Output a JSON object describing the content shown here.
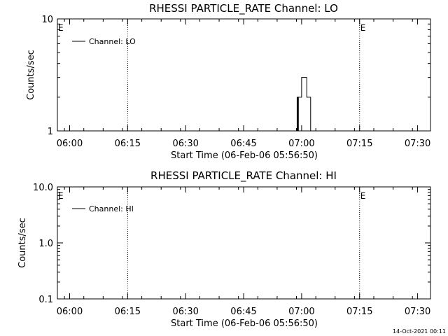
{
  "footer": {
    "timestamp": "14-Oct-2021 00:11"
  },
  "chart_data": [
    {
      "type": "line",
      "title": "RHESSI PARTICLE_RATE Channel: LO",
      "xlabel": "Start Time (06-Feb-06 05:56:50)",
      "ylabel": "Counts/sec",
      "yscale": "log",
      "ylim": [
        1,
        10
      ],
      "xlim_minutes_after_0556_50": [
        0,
        96.5
      ],
      "x_tick_labels": [
        "06:00",
        "06:15",
        "06:30",
        "06:45",
        "07:00",
        "07:15",
        "07:30"
      ],
      "y_tick_labels": [
        "1",
        "10"
      ],
      "legend": "top-left",
      "series": [
        {
          "name": "Channel: LO",
          "x": [
            "06:58:40",
            "06:58:50",
            "06:59:00",
            "06:59:10",
            "06:59:20",
            "06:59:30",
            "06:59:40",
            "06:59:50",
            "07:00:00",
            "07:00:10",
            "07:00:20",
            "07:00:30",
            "07:00:40",
            "07:00:50",
            "07:01:00",
            "07:01:10",
            "07:01:20",
            "07:01:30",
            "07:01:40",
            "07:01:50",
            "07:02:00",
            "07:02:10",
            "07:02:20",
            "07:02:30"
          ],
          "y": [
            1,
            2,
            1,
            2,
            2,
            2,
            2,
            2,
            3,
            3,
            3,
            3,
            3,
            3,
            3,
            3,
            2,
            2,
            2,
            2,
            2,
            2,
            1,
            1
          ]
        }
      ],
      "annotations": [
        {
          "text": "E",
          "time": "05:56:50",
          "line": false
        },
        {
          "text": "",
          "time": "06:15:00",
          "line": true
        },
        {
          "text": "E",
          "time": "07:15:00",
          "line": true
        },
        {
          "text": "",
          "time": "07:33:20",
          "line": true
        }
      ]
    },
    {
      "type": "line",
      "title": "RHESSI PARTICLE_RATE Channel: HI",
      "xlabel": "Start Time (06-Feb-06 05:56:50)",
      "ylabel": "Counts/sec",
      "yscale": "log",
      "ylim": [
        0.1,
        10
      ],
      "xlim_minutes_after_0556_50": [
        0,
        96.5
      ],
      "x_tick_labels": [
        "06:00",
        "06:15",
        "06:30",
        "06:45",
        "07:00",
        "07:15",
        "07:30"
      ],
      "y_tick_labels": [
        "0.1",
        "1.0",
        "10.0"
      ],
      "legend": "top-left",
      "series": [
        {
          "name": "Channel: HI",
          "x": [],
          "y": []
        }
      ],
      "annotations": [
        {
          "text": "E",
          "time": "05:56:50",
          "line": false
        },
        {
          "text": "",
          "time": "06:15:00",
          "line": true
        },
        {
          "text": "E",
          "time": "07:15:00",
          "line": true
        },
        {
          "text": "",
          "time": "07:33:20",
          "line": true
        }
      ]
    }
  ]
}
